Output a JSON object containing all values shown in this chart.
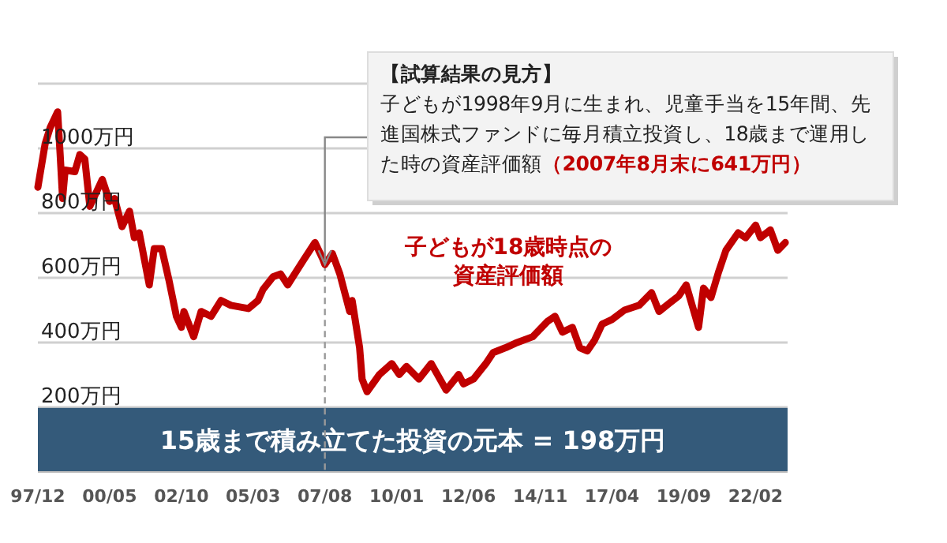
{
  "chart_data": {
    "type": "line",
    "x": [
      "1997-12",
      "1998-03",
      "1998-05",
      "1998-08",
      "1998-09",
      "1998-10",
      "1998-11",
      "1999-03",
      "1999-05",
      "1999-07",
      "1999-09",
      "2000-02",
      "2000-05",
      "2000-07",
      "2000-10",
      "2001-01",
      "2001-03",
      "2001-05",
      "2001-09",
      "2001-11",
      "2002-02",
      "2002-05",
      "2002-08",
      "2002-10",
      "2002-11",
      "2003-03",
      "2003-06",
      "2003-10",
      "2004-02",
      "2004-06",
      "2005-01",
      "2005-05",
      "2005-07",
      "2005-11",
      "2006-02",
      "2006-05",
      "2006-11",
      "2007-04",
      "2007-07",
      "2007-08",
      "2007-11",
      "2008-02",
      "2008-06",
      "2008-07",
      "2008-10",
      "2008-11",
      "2009-01",
      "2009-06",
      "2009-11",
      "2010-02",
      "2010-05",
      "2010-10",
      "2011-03",
      "2011-09",
      "2012-02",
      "2012-04",
      "2012-08",
      "2013-01",
      "2013-04",
      "2013-09",
      "2014-01",
      "2014-08",
      "2015-02",
      "2015-05",
      "2015-08",
      "2015-12",
      "2016-03",
      "2016-06",
      "2016-09",
      "2016-12",
      "2017-04",
      "2017-09",
      "2018-03",
      "2018-08",
      "2018-11",
      "2019-03",
      "2019-07",
      "2019-10",
      "2020-03",
      "2020-05",
      "2020-08",
      "2020-11",
      "2021-02",
      "2021-07",
      "2021-10",
      "2022-02",
      "2022-04",
      "2022-08",
      "2022-11",
      "2023-02"
    ],
    "series": [
      {
        "name": "子どもが18歳時点の資産評価額",
        "color": "#c00000",
        "values": [
          880,
          1015,
          1064,
          1113,
          981,
          845,
          933,
          928,
          981,
          967,
          821,
          904,
          836,
          845,
          758,
          806,
          724,
          739,
          578,
          690,
          690,
          593,
          481,
          447,
          496,
          418,
          496,
          481,
          530,
          515,
          505,
          530,
          564,
          603,
          612,
          578,
          651,
          709,
          661,
          641,
          675,
          612,
          496,
          530,
          384,
          287,
          248,
          301,
          335,
          301,
          326,
          287,
          335,
          253,
          301,
          272,
          287,
          335,
          369,
          384,
          398,
          418,
          466,
          481,
          432,
          447,
          384,
          374,
          408,
          457,
          471,
          500,
          515,
          554,
          496,
          520,
          544,
          578,
          447,
          568,
          539,
          617,
          685,
          739,
          724,
          763,
          724,
          748,
          685,
          709
        ]
      }
    ],
    "xlim": [
      "1997-12",
      "2023-03"
    ],
    "xticks": [
      {
        "value": "1997-12",
        "label": "97/12"
      },
      {
        "value": "2000-05",
        "label": "00/05"
      },
      {
        "value": "2002-10",
        "label": "02/10"
      },
      {
        "value": "2005-03",
        "label": "05/03"
      },
      {
        "value": "2007-08",
        "label": "07/08"
      },
      {
        "value": "2010-01",
        "label": "10/01"
      },
      {
        "value": "2012-06",
        "label": "12/06"
      },
      {
        "value": "2014-11",
        "label": "14/11"
      },
      {
        "value": "2017-04",
        "label": "17/04"
      },
      {
        "value": "2019-09",
        "label": "19/09"
      },
      {
        "value": "2022-02",
        "label": "22/02"
      }
    ],
    "ylim": [
      0,
      1200
    ],
    "yticks": [
      {
        "value": 200,
        "label": "200万円"
      },
      {
        "value": 400,
        "label": "400万円"
      },
      {
        "value": 600,
        "label": "600万円"
      },
      {
        "value": 800,
        "label": "800万円"
      },
      {
        "value": 1000,
        "label": "1000万円"
      },
      {
        "value": 1200,
        "label": null
      }
    ],
    "grid": "y",
    "line_style": "solid",
    "bands": [
      {
        "axis": "y",
        "from": 0,
        "to": 198,
        "label": "15歳まで積み立てた投資の元本 = 198万円",
        "color": "#345a7a"
      }
    ],
    "ref_lines": [
      {
        "axis": "x",
        "value": "2007-08",
        "line_style": "dashed",
        "color": "#999999"
      }
    ],
    "annotations": [
      "【試算結果の見方】",
      {
        "text": "子どもが1998年9月に生まれ、児童手当を15年間、先進国株式ファンドに毎月積立投資し、18歳まで運用した時の資産評価額",
        "x": "2007-08",
        "y": 641
      },
      "（2007年8月末に641万円）"
    ]
  }
}
